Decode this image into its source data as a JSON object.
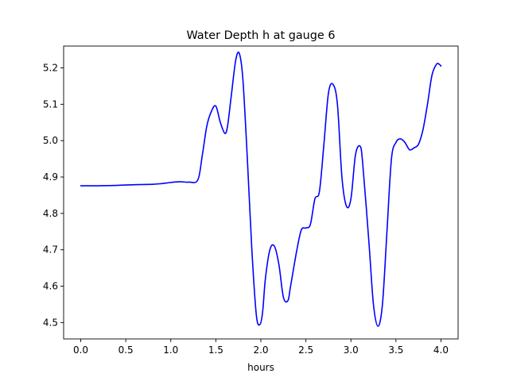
{
  "chart_data": {
    "type": "line",
    "title": "Water Depth h at gauge 6",
    "xlabel": "hours",
    "ylabel": "",
    "xlim": [
      -0.19,
      4.19
    ],
    "ylim": [
      4.455,
      5.26
    ],
    "xticks": [
      0.0,
      0.5,
      1.0,
      1.5,
      2.0,
      2.5,
      3.0,
      3.5,
      4.0
    ],
    "xtick_labels": [
      "0.0",
      "0.5",
      "1.0",
      "1.5",
      "2.0",
      "2.5",
      "3.0",
      "3.5",
      "4.0"
    ],
    "yticks": [
      4.5,
      4.6,
      4.7,
      4.8,
      4.9,
      5.0,
      5.1,
      5.2
    ],
    "ytick_labels": [
      "4.5",
      "4.6",
      "4.7",
      "4.8",
      "4.9",
      "5.0",
      "5.1",
      "5.2"
    ],
    "grid": false,
    "line_color": "#0000ff",
    "series": [
      {
        "x": [
          0.0,
          0.2,
          0.4,
          0.6,
          0.8,
          0.9,
          1.0,
          1.1,
          1.2,
          1.3,
          1.35,
          1.4,
          1.45,
          1.5,
          1.55,
          1.6,
          1.63,
          1.67,
          1.72,
          1.76,
          1.8,
          1.85,
          1.9,
          1.95,
          1.99,
          2.02,
          2.05,
          2.1,
          2.15,
          2.2,
          2.25,
          2.3,
          2.33,
          2.4,
          2.45,
          2.5,
          2.55,
          2.6,
          2.65,
          2.7,
          2.75,
          2.8,
          2.85,
          2.9,
          2.95,
          3.0,
          3.05,
          3.1,
          3.13,
          3.2,
          3.25,
          3.3,
          3.35,
          3.4,
          3.45,
          3.5,
          3.55,
          3.6,
          3.65,
          3.7,
          3.75,
          3.8,
          3.85,
          3.9,
          3.95,
          3.98,
          4.0
        ],
        "y": [
          4.876,
          4.876,
          4.877,
          4.879,
          4.88,
          4.882,
          4.885,
          4.887,
          4.886,
          4.892,
          4.96,
          5.04,
          5.08,
          5.095,
          5.05,
          5.02,
          5.04,
          5.12,
          5.22,
          5.24,
          5.17,
          4.95,
          4.7,
          4.52,
          4.495,
          4.53,
          4.62,
          4.7,
          4.71,
          4.66,
          4.57,
          4.56,
          4.6,
          4.7,
          4.755,
          4.76,
          4.77,
          4.84,
          4.86,
          4.99,
          5.13,
          5.155,
          5.1,
          4.9,
          4.82,
          4.84,
          4.96,
          4.985,
          4.94,
          4.72,
          4.55,
          4.49,
          4.55,
          4.75,
          4.95,
          4.995,
          5.005,
          4.995,
          4.975,
          4.98,
          4.99,
          5.03,
          5.1,
          5.18,
          5.21,
          5.21,
          5.205
        ]
      }
    ]
  }
}
